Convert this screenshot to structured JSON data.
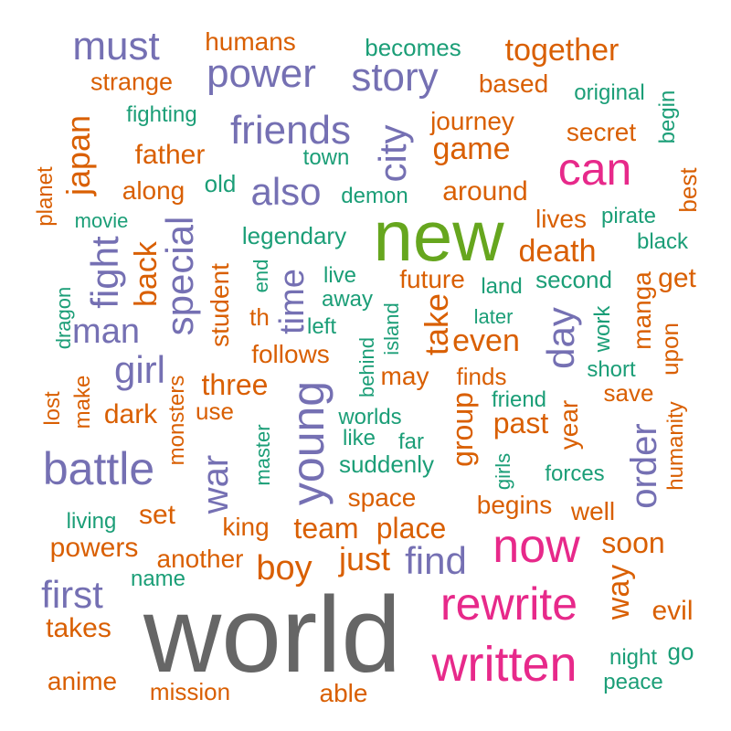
{
  "palette": {
    "orange": "#D95F02",
    "purple": "#7570B3",
    "pink": "#E7298A",
    "teal": "#1B9E77",
    "gray": "#666666",
    "green": "#66A61E"
  },
  "words": [
    "world",
    "new",
    "written",
    "rewrite",
    "now",
    "can",
    "battle",
    "young",
    "must",
    "power",
    "story",
    "friends",
    "city",
    "also",
    "fight",
    "special",
    "girl",
    "day",
    "find",
    "first",
    "order",
    "war",
    "time",
    "man",
    "japan",
    "together",
    "humans",
    "strange",
    "based",
    "journey",
    "game",
    "secret",
    "father",
    "along",
    "around",
    "death",
    "lives",
    "best",
    "planet",
    "back",
    "future",
    "take",
    "even",
    "student",
    "follows",
    "three",
    "dark",
    "past",
    "group",
    "year",
    "humanity",
    "monsters",
    "may",
    "finds",
    "use",
    "manga",
    "get",
    "upon",
    "lost",
    "make",
    "save",
    "soon",
    "evil",
    "set",
    "team",
    "place",
    "just",
    "boy",
    "king",
    "space",
    "begins",
    "well",
    "powers",
    "another",
    "takes",
    "anime",
    "mission",
    "able",
    "th",
    "way",
    "becomes",
    "original",
    "begin",
    "fighting",
    "town",
    "old",
    "demon",
    "movie",
    "legendary",
    "pirate",
    "black",
    "end",
    "live",
    "land",
    "second",
    "away",
    "dragon",
    "left",
    "later",
    "island",
    "work",
    "behind",
    "short",
    "friend",
    "worlds",
    "like",
    "far",
    "master",
    "suddenly",
    "girls",
    "forces",
    "living",
    "name",
    "night",
    "go",
    "peace"
  ]
}
